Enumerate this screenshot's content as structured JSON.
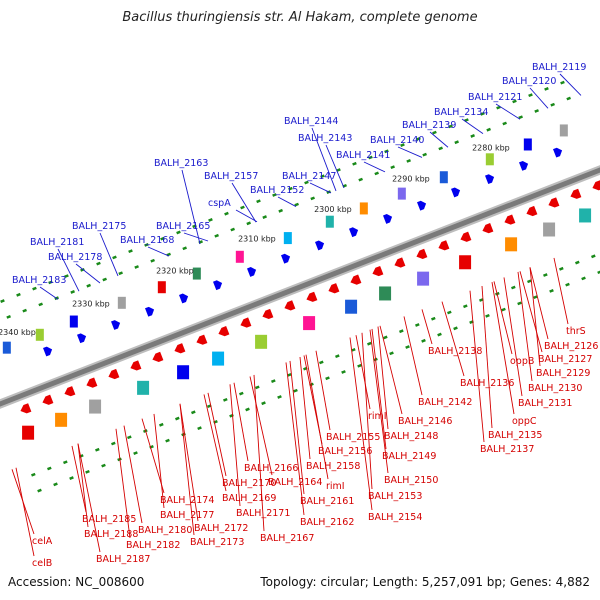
{
  "title": "Bacillus thuringiensis str. Al Hakam, complete genome",
  "footer": {
    "accession": "Accession: NC_008600",
    "summary": "Topology: circular; Length: 5,257,091 bp; Genes: 4,882"
  },
  "colors": {
    "top_label": "#1a1acc",
    "bottom_label": "#d40000",
    "backbone": "#7a7a7a",
    "tick": "#1a8a1a"
  },
  "scale_ticks": [
    "2340 kbp",
    "2330 kbp",
    "2320 kbp",
    "2310 kbp",
    "2300 kbp",
    "2290 kbp",
    "2280 kbp"
  ],
  "top_labels": [
    "BALH_2183",
    "BALH_2181",
    "BALH_2178",
    "BALH_2175",
    "BALH_2168",
    "BALH_2165",
    "BALH_2163",
    "cspA",
    "BALH_2157",
    "BALH_2152",
    "BALH_2147",
    "BALH_2144",
    "BALH_2143",
    "BALH_2141",
    "BALH_2140",
    "BALH_2139",
    "BALH_2134",
    "BALH_2121",
    "BALH_2120",
    "BALH_2119"
  ],
  "bottom_labels": [
    "celA",
    "celB",
    "BALH_2185",
    "BALH_2188",
    "BALH_2187",
    "BALH_2180",
    "BALH_2182",
    "BALH_2177",
    "BALH_2174",
    "BALH_2172",
    "BALH_2173",
    "BALH_2171",
    "BALH_2169",
    "BALH_2170",
    "BALH_2166",
    "BALH_2167",
    "BALH_2164",
    "BALH_2162",
    "BALH_2161",
    "BALH_2158",
    "rimI",
    "BALH_2156",
    "BALH_2155",
    "BALH_2153",
    "BALH_2154",
    "BALH_2150",
    "BALH_2149",
    "BALH_2148",
    "BALH_2146",
    "BALH_2142",
    "rimI",
    "BALH_2138",
    "BALH_2136",
    "oppB",
    "BALH_2137",
    "BALH_2135",
    "oppC",
    "BALH_2131",
    "BALH_2130",
    "BALH_2129",
    "BALH_2127",
    "BALH_2126",
    "thrS"
  ]
}
